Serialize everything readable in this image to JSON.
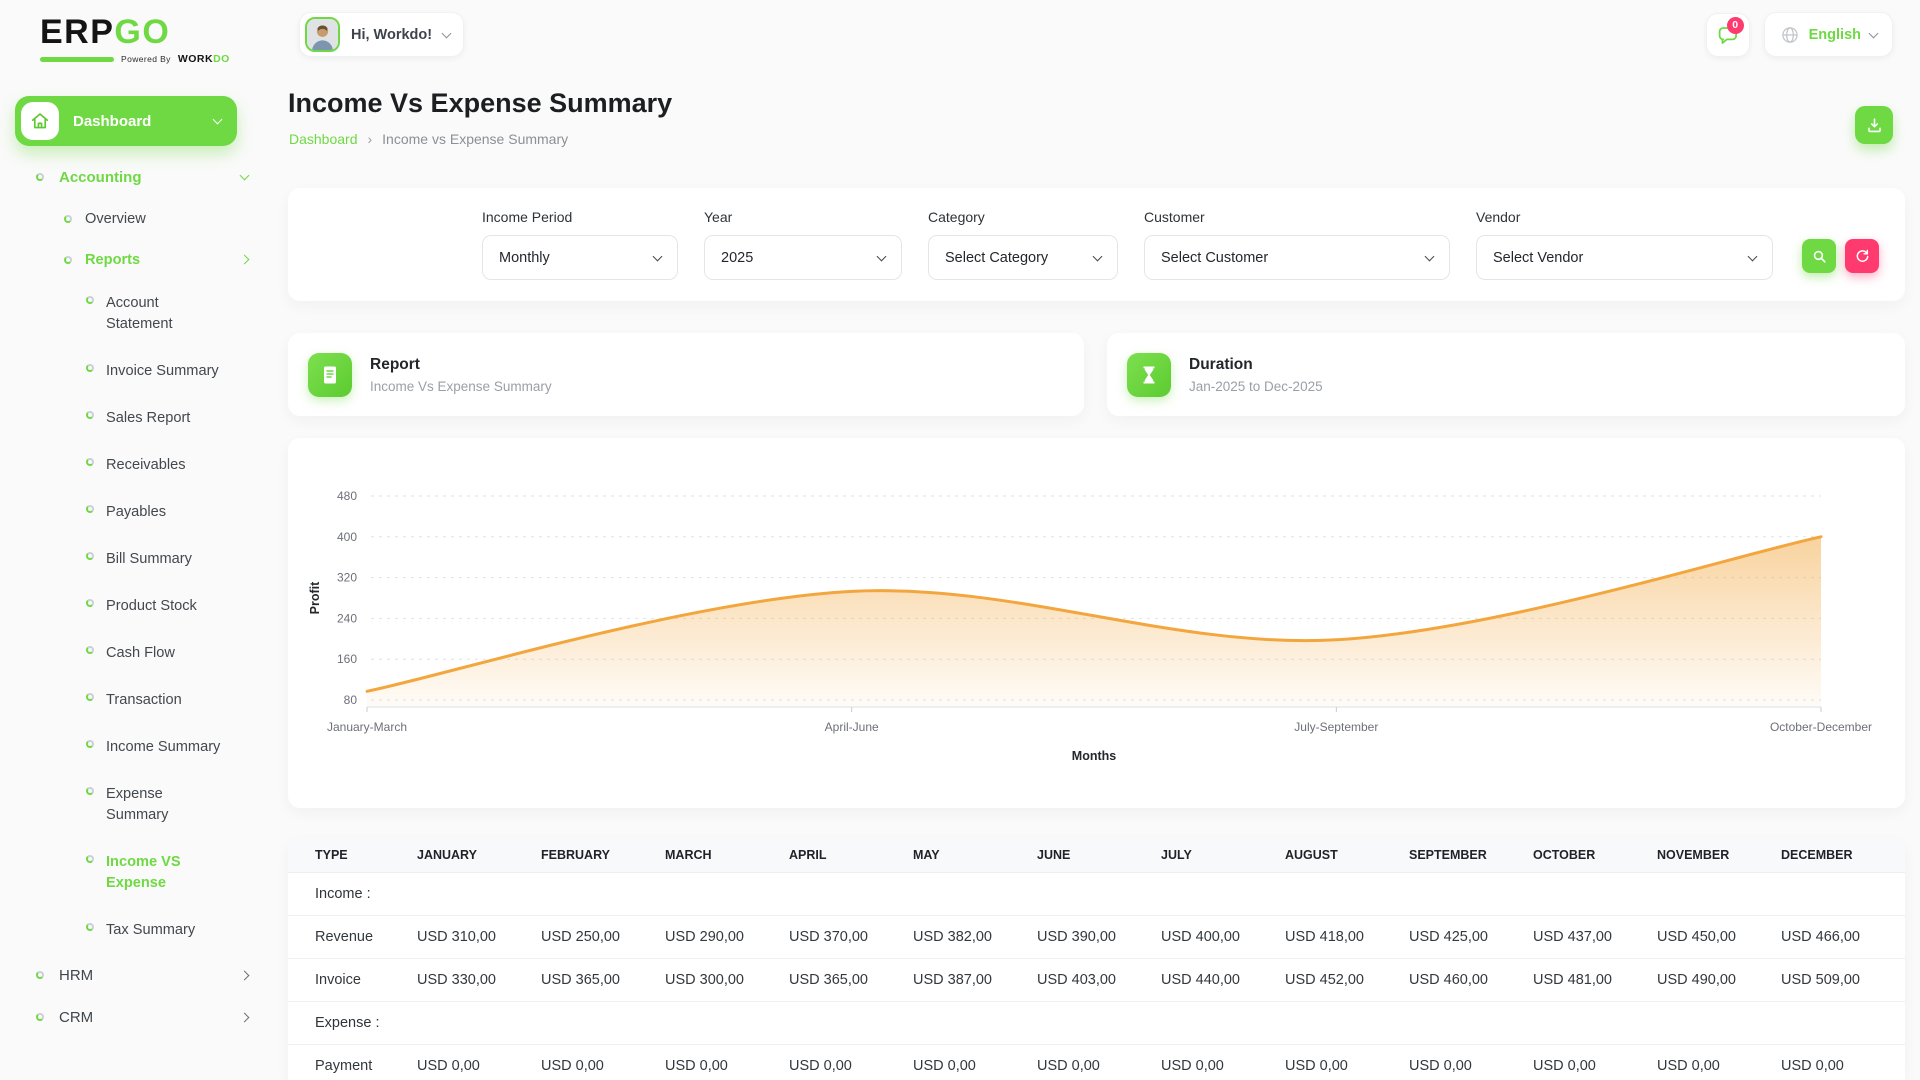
{
  "brand": {
    "erp": "ERP",
    "go": "GO",
    "powered_prefix": "Powered By",
    "workdo_black": "WORK",
    "workdo_green": "DO"
  },
  "header": {
    "greeting": "Hi, Workdo!",
    "notification_badge": "0",
    "language": "English"
  },
  "sidebar": {
    "dashboard": "Dashboard",
    "accounting": "Accounting",
    "overview": "Overview",
    "reports": "Reports",
    "report_items": [
      "Account Statement",
      "Invoice Summary",
      "Sales Report",
      "Receivables",
      "Payables",
      "Bill Summary",
      "Product Stock",
      "Cash Flow",
      "Transaction",
      "Income Summary",
      "Expense Summary",
      "Income VS Expense",
      "Tax Summary"
    ],
    "active_item": "Income VS Expense",
    "hrm": "HRM",
    "crm": "CRM"
  },
  "page": {
    "title": "Income Vs Expense Summary",
    "breadcrumb_root": "Dashboard",
    "breadcrumb_current": "Income vs Expense Summary"
  },
  "filters": {
    "fields": [
      {
        "label": "Income Period",
        "value": "Monthly"
      },
      {
        "label": "Year",
        "value": "2025"
      },
      {
        "label": "Category",
        "value": "Select Category"
      },
      {
        "label": "Customer",
        "value": "Select Customer"
      },
      {
        "label": "Vendor",
        "value": "Select Vendor"
      }
    ]
  },
  "cards": {
    "report": {
      "title": "Report",
      "subtitle": "Income Vs Expense Summary"
    },
    "duration": {
      "title": "Duration",
      "subtitle": "Jan-2025 to Dec-2025"
    }
  },
  "chart_data": {
    "type": "area",
    "x": [
      "January-March",
      "April-June",
      "July-September",
      "October-December"
    ],
    "series": [
      {
        "name": "Profit",
        "values": [
          97,
          293,
          198,
          400
        ]
      }
    ],
    "xlabel": "Months",
    "ylabel": "Profit",
    "ylim": [
      80,
      480
    ],
    "yticks": [
      80,
      160,
      240,
      320,
      400,
      480
    ],
    "grid": "dashed-horizontal",
    "legend": "none",
    "smooth": true,
    "line_color": "#f2a63d"
  },
  "table": {
    "headers": [
      "TYPE",
      "JANUARY",
      "FEBRUARY",
      "MARCH",
      "APRIL",
      "MAY",
      "JUNE",
      "JULY",
      "AUGUST",
      "SEPTEMBER",
      "OCTOBER",
      "NOVEMBER",
      "DECEMBER"
    ],
    "sections": [
      {
        "label": "Income :",
        "rows": [
          {
            "type": "Revenue",
            "values": [
              "USD 310,00",
              "USD 250,00",
              "USD 290,00",
              "USD 370,00",
              "USD 382,00",
              "USD 390,00",
              "USD 400,00",
              "USD 418,00",
              "USD 425,00",
              "USD 437,00",
              "USD 450,00",
              "USD 466,00"
            ]
          },
          {
            "type": "Invoice",
            "values": [
              "USD 330,00",
              "USD 365,00",
              "USD 300,00",
              "USD 365,00",
              "USD 387,00",
              "USD 403,00",
              "USD 440,00",
              "USD 452,00",
              "USD 460,00",
              "USD 481,00",
              "USD 490,00",
              "USD 509,00"
            ]
          }
        ]
      },
      {
        "label": "Expense :",
        "rows": [
          {
            "type": "Payment",
            "values": [
              "USD 0,00",
              "USD 0,00",
              "USD 0,00",
              "USD 0,00",
              "USD 0,00",
              "USD 0,00",
              "USD 0,00",
              "USD 0,00",
              "USD 0,00",
              "USD 0,00",
              "USD 0,00",
              "USD 0,00"
            ]
          }
        ]
      }
    ]
  },
  "colors": {
    "accent": "#6fd943",
    "danger": "#ff3a6e",
    "chart_line": "#f2a63d"
  }
}
